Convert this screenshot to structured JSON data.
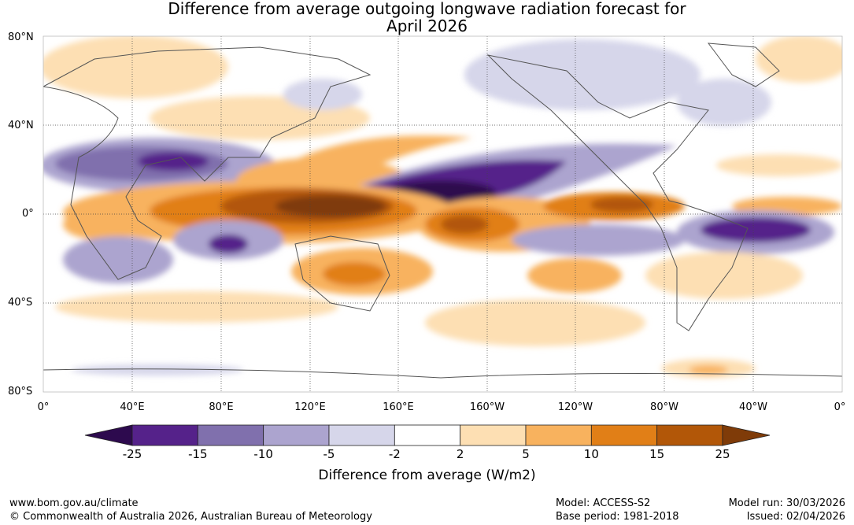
{
  "title_line1": "Difference from average outgoing longwave radiation forecast for",
  "title_line2": "April 2026",
  "lat_labels": [
    "80°N",
    "40°N",
    "0°",
    "40°S",
    "80°S"
  ],
  "lon_labels": [
    "0°",
    "40°E",
    "80°E",
    "120°E",
    "160°E",
    "160°W",
    "120°W",
    "80°W",
    "40°W",
    "0°"
  ],
  "colorbar": {
    "ticks": [
      "-25",
      "-15",
      "-10",
      "-5",
      "-2",
      "2",
      "5",
      "10",
      "15",
      "25"
    ],
    "colors": [
      "#2d0a4e",
      "#55228a",
      "#8070ad",
      "#aca4cf",
      "#d6d6ea",
      "#ffffff",
      "#fddfb3",
      "#f8b25e",
      "#e17f17",
      "#b25708",
      "#7f3b08"
    ],
    "title": "Difference from average (W/m2)"
  },
  "footer": {
    "url": "www.bom.gov.au/climate",
    "copyright": "© Commonwealth of Australia 2026, Australian Bureau of Meteorology",
    "model": "Model: ACCESS-S2",
    "base_period": "Base period: 1981-2018",
    "model_run": "Model run: 30/03/2026",
    "issued": "Issued: 02/04/2026"
  }
}
